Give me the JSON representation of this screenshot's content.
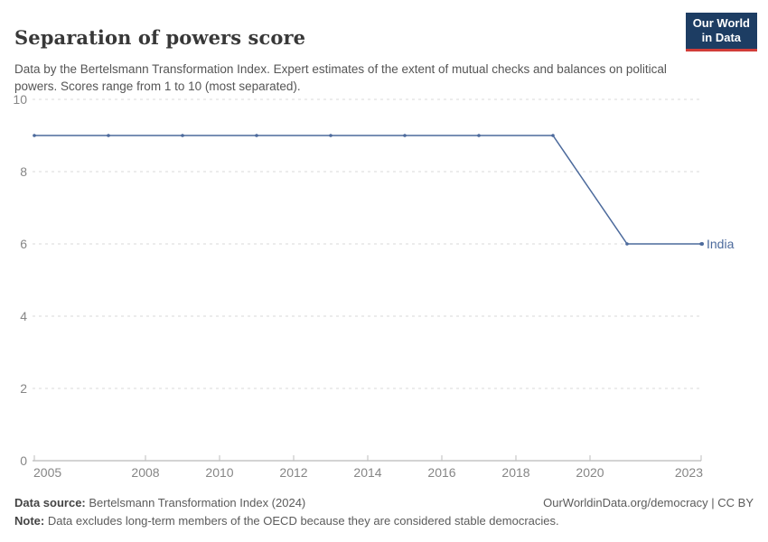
{
  "header": {
    "title": "Separation of powers score",
    "subtitle": "Data by the Bertelsmann Transformation Index. Expert estimates of the extent of mutual checks and balances on political powers. Scores range from 1 to 10 (most separated).",
    "logo": {
      "line1": "Our World",
      "line2": "in Data"
    }
  },
  "chart_data": {
    "type": "line",
    "title": "Separation of powers score",
    "x": [
      2005,
      2007,
      2009,
      2011,
      2013,
      2015,
      2017,
      2019,
      2021,
      2023
    ],
    "series": [
      {
        "name": "India",
        "values": [
          9,
          9,
          9,
          9,
          9,
          9,
          9,
          9,
          6,
          6
        ],
        "color": "#4c6a9c"
      }
    ],
    "xticks": [
      2005,
      2008,
      2010,
      2012,
      2014,
      2016,
      2018,
      2020,
      2023
    ],
    "yticks": [
      0,
      2,
      4,
      6,
      8,
      10
    ],
    "xlim": [
      2005,
      2023
    ],
    "ylim": [
      0,
      10
    ],
    "grid": "horizontal-dashed",
    "legend": "end-of-line-label",
    "xlabel": "",
    "ylabel": ""
  },
  "footer": {
    "datasource_label": "Data source:",
    "datasource_value": " Bertelsmann Transformation Index (2024)",
    "link": "OurWorldinData.org/democracy | CC BY",
    "note_label": "Note:",
    "note_value": " Data excludes long-term members of the OECD because they are considered stable democracies."
  },
  "colors": {
    "series_india": "#4c6a9c",
    "logo_background": "#1d3d63",
    "logo_underline": "#d13d38",
    "gridline": "#dadada",
    "axis": "#a7a7a7",
    "tick_label": "#868686",
    "title_text": "#383838",
    "body_text": "#555555"
  }
}
